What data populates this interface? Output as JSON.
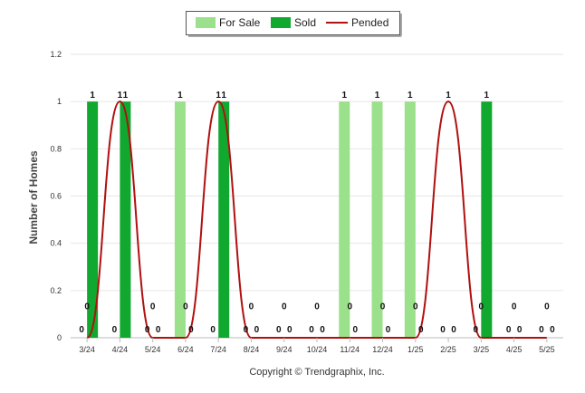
{
  "chart_data": {
    "type": "bar",
    "categories": [
      "3/24",
      "4/24",
      "5/24",
      "6/24",
      "7/24",
      "8/24",
      "9/24",
      "10/24",
      "11/24",
      "12/24",
      "1/25",
      "2/25",
      "3/25",
      "4/25",
      "5/25"
    ],
    "series": [
      {
        "name": "For Sale",
        "type": "bar",
        "color": "#9be08a",
        "values": [
          0,
          0,
          0,
          1,
          0,
          0,
          0,
          0,
          1,
          1,
          1,
          0,
          0,
          0,
          0
        ]
      },
      {
        "name": "Sold",
        "type": "bar",
        "color": "#10a82e",
        "values": [
          1,
          1,
          0,
          0,
          1,
          0,
          0,
          0,
          0,
          0,
          0,
          0,
          1,
          0,
          0
        ]
      },
      {
        "name": "Pended",
        "type": "line",
        "color": "#b01010",
        "values": [
          0,
          1,
          0,
          0,
          1,
          0,
          0,
          0,
          0,
          0,
          0,
          1,
          0,
          0,
          0
        ]
      }
    ],
    "xlabel": "",
    "ylabel": "Number of Homes",
    "ylim": [
      0,
      1.2
    ],
    "yticks": [
      "0",
      "0.2",
      "0.4",
      "0.6",
      "0.8",
      "1",
      "1.2"
    ],
    "grid": true,
    "legend_position": "top-center"
  },
  "copyright": "Copyright © Trendgraphix, Inc."
}
